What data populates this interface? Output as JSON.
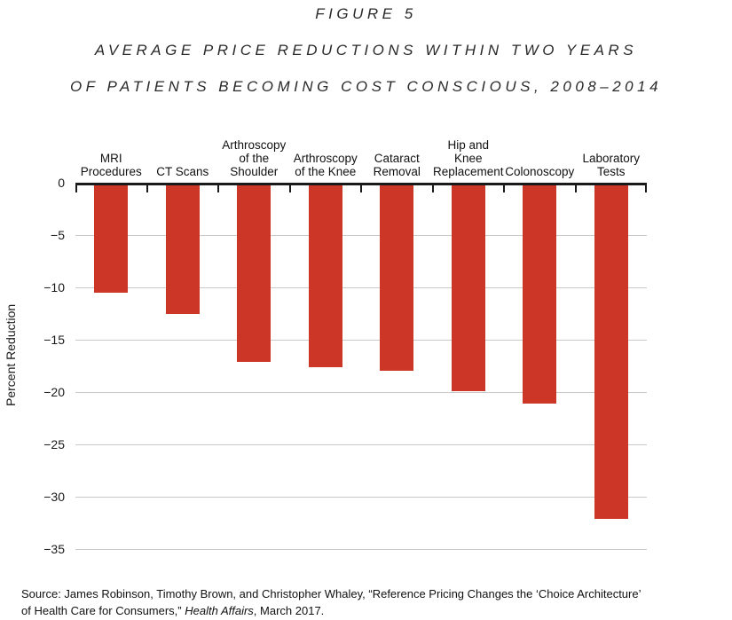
{
  "title": {
    "figure_label": "FIGURE 5",
    "line1": "AVERAGE PRICE REDUCTIONS WITHIN TWO YEARS",
    "line2": "OF PATIENTS BECOMING COST CONSCIOUS, 2008–2014"
  },
  "chart_data": {
    "type": "bar",
    "title": "FIGURE 5: Average price reductions within two years of patients becoming cost conscious, 2008–2014",
    "categories": [
      "MRI\nProcedures",
      "CT Scans",
      "Arthroscopy\nof the\nShoulder",
      "Arthroscopy\nof the Knee",
      "Cataract\nRemoval",
      "Hip and\nKnee\nReplacement",
      "Colonoscopy",
      "Laboratory\nTests"
    ],
    "values": [
      -10.5,
      -12.5,
      -17.1,
      -17.6,
      -18.0,
      -19.9,
      -21.1,
      -32.1
    ],
    "xlabel": "",
    "ylabel": "Percent Reduction",
    "ylim": [
      -35,
      0
    ],
    "yticks": [
      0,
      -5,
      -10,
      -15,
      -20,
      -25,
      -30,
      -35
    ],
    "ytick_labels": [
      "0",
      "−5",
      "−10",
      "−15",
      "−20",
      "−25",
      "−30",
      "−35"
    ],
    "grid": true,
    "legend": "none",
    "bar_color": "#cb3627",
    "axis_color": "#1a1a1a",
    "gridline_color": "#c9c9c9"
  },
  "source": {
    "line1": "Source: James Robinson, Timothy Brown, and Christopher Whaley, “Reference Pricing Changes the ‘Choice Architecture’",
    "line2_before_journal": "of Health Care for Consumers,” ",
    "journal": "Health Affairs",
    "line2_after_journal": ", March 2017."
  }
}
